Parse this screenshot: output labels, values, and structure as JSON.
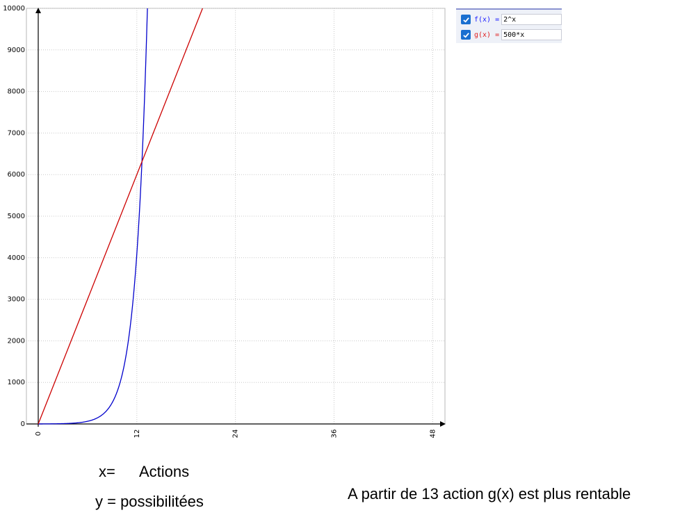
{
  "chart_data": {
    "type": "line",
    "x_ticks": [
      "0",
      "12",
      "24",
      "36",
      "48"
    ],
    "y_ticks": [
      "0",
      "1000",
      "2000",
      "3000",
      "4000",
      "5000",
      "6000",
      "7000",
      "8000",
      "9000",
      "10000"
    ],
    "xlim": [
      0,
      49.5
    ],
    "ylim": [
      0,
      10000
    ],
    "grid": true,
    "series": [
      {
        "name": "f(x)",
        "expression": "2^x",
        "color": "#0000cc",
        "x": [
          0,
          4,
          6,
          8,
          9,
          10,
          11,
          12,
          12.5,
          13,
          13.29
        ],
        "y": [
          1,
          16,
          64,
          256,
          512,
          1024,
          2048,
          4096,
          5793,
          8192,
          10000
        ]
      },
      {
        "name": "g(x)",
        "expression": "500*x",
        "color": "#cc0000",
        "x": [
          0,
          20
        ],
        "y": [
          0,
          10000
        ]
      }
    ]
  },
  "functions_panel": {
    "items": [
      {
        "label": "f(x) =",
        "expression": "2^x",
        "color": "#1a1aff",
        "checked": true
      },
      {
        "label": "g(x) =",
        "expression": "500*x",
        "color": "#e02020",
        "checked": true
      }
    ]
  },
  "notes": {
    "x_label": "x=",
    "x_value": "Actions",
    "y_line": "y = possibilitées",
    "conclusion": "A partir de 13 action g(x) est plus rentable"
  }
}
